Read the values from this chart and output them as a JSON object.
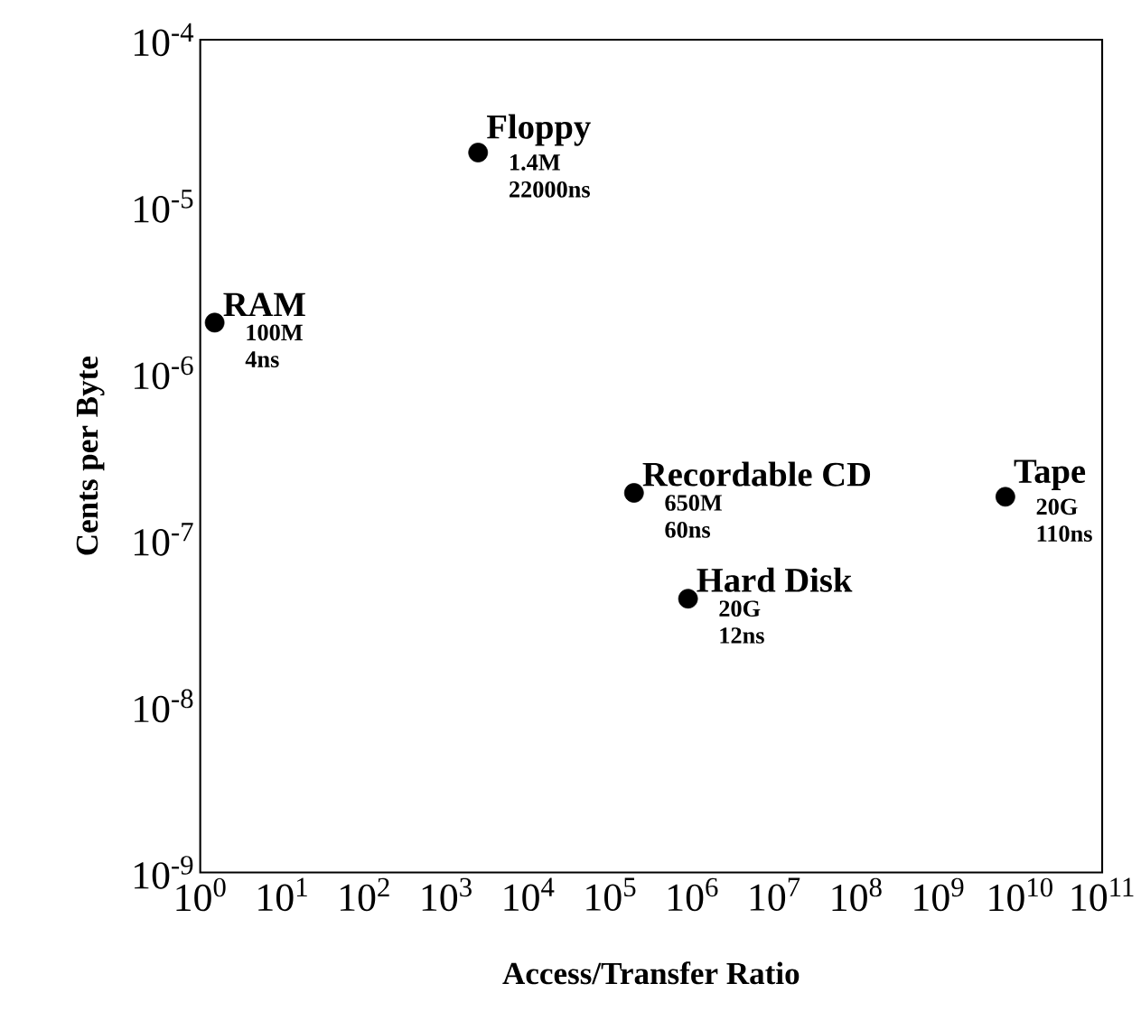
{
  "chart_data": {
    "type": "scatter",
    "xlabel": "Access/Transfer Ratio",
    "ylabel": "Cents per Byte",
    "log": "xy",
    "marker": "circle",
    "color": "#000000",
    "x": [
      2450,
      1.5,
      195000,
      890000,
      6600000000
    ],
    "values": [
      2.1e-05,
      2e-06,
      1.9e-07,
      4.4e-08,
      1.8e-07
    ],
    "xlim": [
      1,
      100000000000
    ],
    "ylim": [
      1e-09,
      0.0001
    ],
    "xticks": [
      {
        "value": 1,
        "label": "10$^{0}$"
      },
      {
        "value": 10,
        "label": "10$^{1}$"
      },
      {
        "value": 100,
        "label": "10$^{2}$"
      },
      {
        "value": 1000,
        "label": "10$^{3}$"
      },
      {
        "value": 10000,
        "label": "10$^{4}$"
      },
      {
        "value": 100000,
        "label": "10$^{5}$"
      },
      {
        "value": 1000000,
        "label": "10$^{6}$"
      },
      {
        "value": 10000000,
        "label": "10$^{7}$"
      },
      {
        "value": 100000000,
        "label": "10$^{8}$"
      },
      {
        "value": 1000000000,
        "label": "10$^{9}$"
      },
      {
        "value": 10000000000,
        "label": "10$^{10}$"
      },
      {
        "value": 100000000000,
        "label": "10$^{11}$"
      }
    ],
    "yticks": [
      {
        "value": 1e-09,
        "label": "10$^{-9}$"
      },
      {
        "value": 1e-08,
        "label": "10$^{-8}$"
      },
      {
        "value": 1e-07,
        "label": "10$^{-7}$"
      },
      {
        "value": 1e-06,
        "label": "10$^{-6}$"
      },
      {
        "value": 1e-05,
        "label": "10$^{-5}$"
      },
      {
        "value": 0.0001,
        "label": "10$^{-4}$"
      }
    ],
    "annotations": [
      {
        "text": "Floppy",
        "x": 2450,
        "y": 2.1e-05
      },
      {
        "text": "1.4M",
        "x": 2450,
        "y": 2.1e-05
      },
      {
        "text": "22000ns",
        "x": 2450,
        "y": 2.1e-05
      },
      {
        "text": "RAM",
        "x": 1.5,
        "y": 2e-06
      },
      {
        "text": "100M",
        "x": 1.5,
        "y": 2e-06
      },
      {
        "text": "4ns",
        "x": 1.5,
        "y": 2e-06
      },
      {
        "text": "Recordable CD",
        "x": 195000,
        "y": 1.9e-07
      },
      {
        "text": "650M",
        "x": 195000,
        "y": 1.9e-07
      },
      {
        "text": "60ns",
        "x": 195000,
        "y": 1.9e-07
      },
      {
        "text": "Hard Disk",
        "x": 890000,
        "y": 4.4e-08
      },
      {
        "text": "20G",
        "x": 890000,
        "y": 4.4e-08
      },
      {
        "text": "12ns",
        "x": 890000,
        "y": 4.4e-08
      },
      {
        "text": "Tape",
        "x": 6600000000,
        "y": 1.8e-07
      },
      {
        "text": "20G",
        "x": 6600000000,
        "y": 1.8e-07
      },
      {
        "text": "110ns",
        "x": 6600000000,
        "y": 1.8e-07
      }
    ]
  }
}
